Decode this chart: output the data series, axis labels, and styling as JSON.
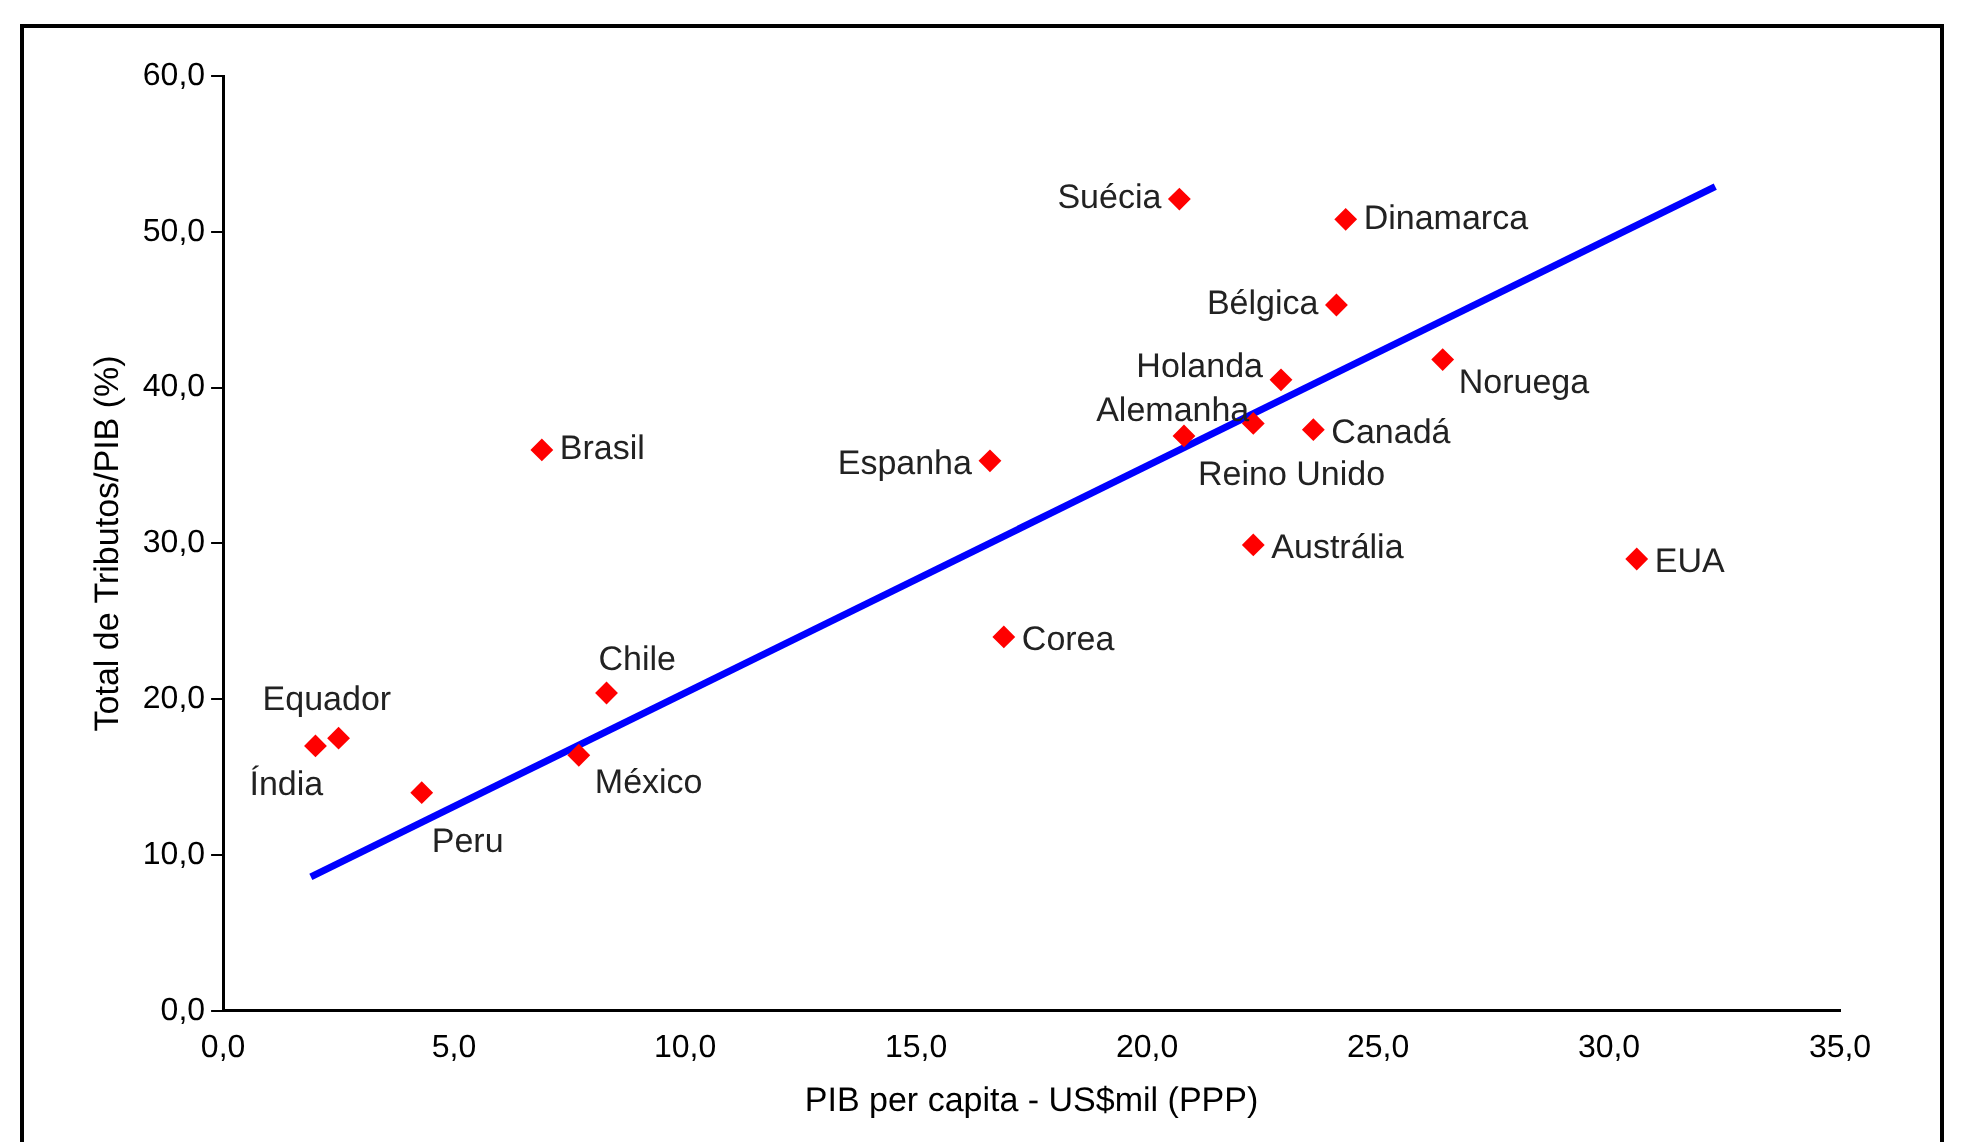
{
  "chart_data": {
    "type": "scatter",
    "xlabel": "PIB per capita - US$mil (PPP)",
    "ylabel": "Total de Tributos/PIB (%)",
    "xlim": [
      0,
      35
    ],
    "xticks": [
      {
        "value": 0,
        "label": "0,0"
      },
      {
        "value": 5,
        "label": "5,0"
      },
      {
        "value": 10,
        "label": "10,0"
      },
      {
        "value": 15,
        "label": "15,0"
      },
      {
        "value": 20,
        "label": "20,0"
      },
      {
        "value": 25,
        "label": "25,0"
      },
      {
        "value": 30,
        "label": "30,0"
      },
      {
        "value": 35,
        "label": "35,0"
      }
    ],
    "ylim": [
      0,
      60
    ],
    "yticks": [
      {
        "value": 0,
        "label": "0,0"
      },
      {
        "value": 10,
        "label": "10,0"
      },
      {
        "value": 20,
        "label": "20,0"
      },
      {
        "value": 30,
        "label": "30,0"
      },
      {
        "value": 40,
        "label": "40,0"
      },
      {
        "value": 50,
        "label": "50,0"
      },
      {
        "value": 60,
        "label": "60,0"
      }
    ],
    "grid": false,
    "legend": false,
    "marker": "diamond",
    "series": [
      {
        "color": "#ff0000",
        "x": [
          20.7,
          24.3,
          24.1,
          22.9,
          26.4,
          22.3,
          23.6,
          20.8,
          16.6,
          6.9,
          22.3,
          30.6,
          16.9,
          8.3,
          2.5,
          2.0,
          7.7,
          4.3
        ],
        "values": [
          52.1,
          50.8,
          45.3,
          40.5,
          41.8,
          37.7,
          37.3,
          36.9,
          35.3,
          36.0,
          29.9,
          29.0,
          24.0,
          20.4,
          17.5,
          17.0,
          16.4,
          14.0
        ]
      },
      {
        "type": "line",
        "color": "#0000ff",
        "line_style": "solid",
        "marker": "none",
        "x": [
          1.9,
          32.3
        ],
        "values": [
          8.6,
          52.9
        ]
      }
    ],
    "annotations": [
      {
        "text": "Suécia",
        "x": 20.7,
        "y": 52.1
      },
      {
        "text": "Dinamarca",
        "x": 24.3,
        "y": 50.8
      },
      {
        "text": "Bélgica",
        "x": 24.1,
        "y": 45.3
      },
      {
        "text": "Holanda",
        "x": 22.9,
        "y": 40.5
      },
      {
        "text": "Noruega",
        "x": 26.4,
        "y": 41.8
      },
      {
        "text": "Alemanha",
        "x": 22.3,
        "y": 37.7
      },
      {
        "text": "Canadá",
        "x": 23.6,
        "y": 37.3
      },
      {
        "text": "Reino Unido",
        "x": 20.8,
        "y": 36.9
      },
      {
        "text": "Espanha",
        "x": 16.6,
        "y": 35.3
      },
      {
        "text": "Brasil",
        "x": 6.9,
        "y": 36.0
      },
      {
        "text": "Austrália",
        "x": 22.3,
        "y": 29.9
      },
      {
        "text": "EUA",
        "x": 30.6,
        "y": 29.0
      },
      {
        "text": "Corea",
        "x": 16.9,
        "y": 24.0
      },
      {
        "text": "Chile",
        "x": 8.3,
        "y": 20.4
      },
      {
        "text": "Equador",
        "x": 2.5,
        "y": 17.5
      },
      {
        "text": "Índia",
        "x": 2.0,
        "y": 17.0
      },
      {
        "text": "México",
        "x": 7.7,
        "y": 16.4
      },
      {
        "text": "Peru",
        "x": 4.3,
        "y": 14.0
      }
    ]
  }
}
